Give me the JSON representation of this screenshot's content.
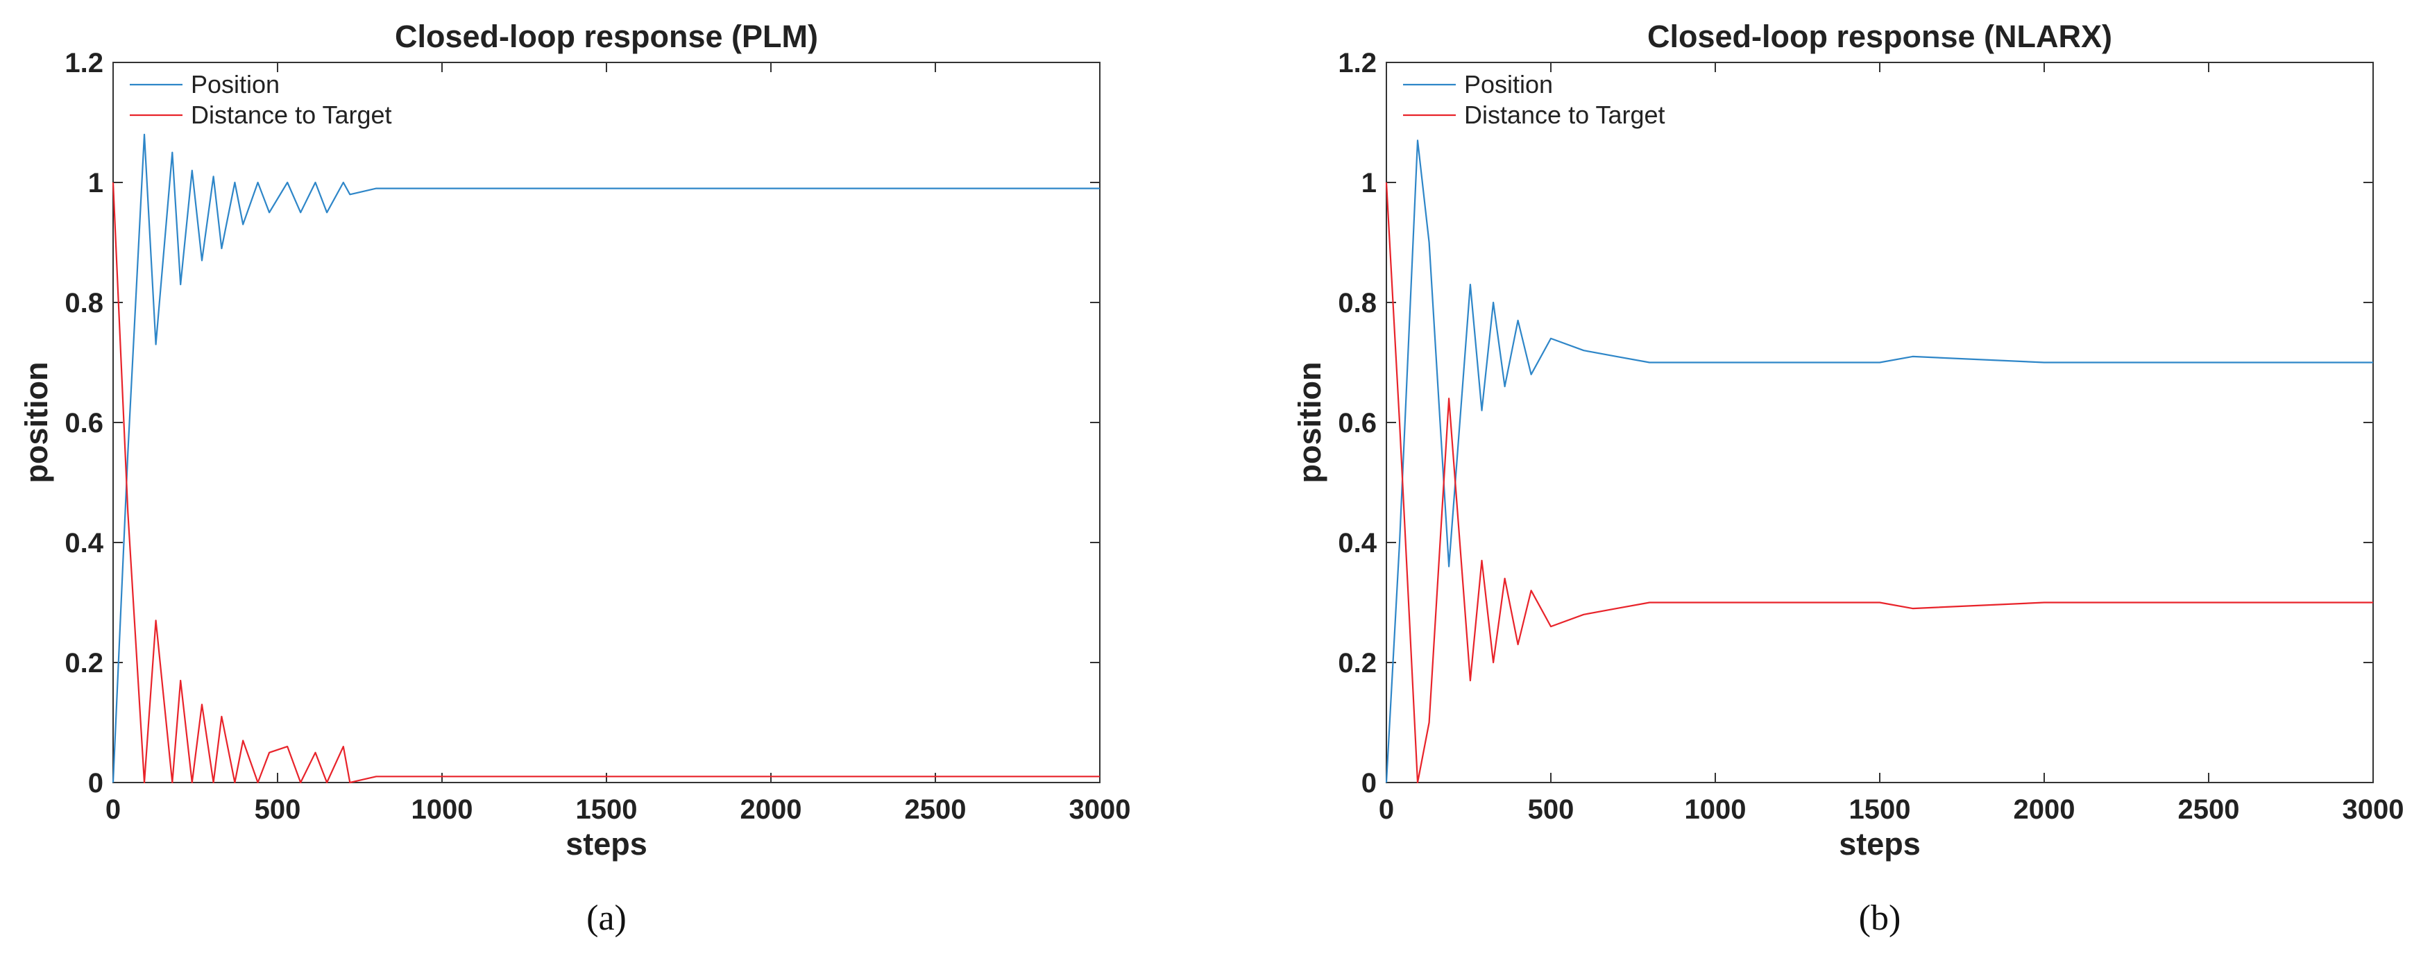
{
  "chart_data": [
    {
      "type": "line",
      "title": "Closed-loop response (PLM)",
      "xlabel": "steps",
      "ylabel": "position",
      "xlim": [
        0,
        3000
      ],
      "ylim": [
        0,
        1.2
      ],
      "xticks": [
        "0",
        "500",
        "1000",
        "1500",
        "2000",
        "2500",
        "3000"
      ],
      "yticks": [
        "0",
        "0.2",
        "0.4",
        "0.6",
        "0.8",
        "1",
        "1.2"
      ],
      "grid": false,
      "legend_position": "top-left",
      "caption": "(a)",
      "series": [
        {
          "name": "Position",
          "color": "#2e86c8",
          "x": [
            0,
            45,
            95,
            130,
            180,
            205,
            240,
            270,
            305,
            330,
            370,
            395,
            440,
            475,
            530,
            570,
            615,
            650,
            700,
            720,
            800,
            1000,
            1500,
            2000,
            2500,
            3000
          ],
          "y": [
            0,
            0.55,
            1.08,
            0.73,
            1.05,
            0.83,
            1.02,
            0.87,
            1.01,
            0.89,
            1.0,
            0.93,
            1.0,
            0.95,
            1.0,
            0.95,
            1.0,
            0.95,
            1.0,
            0.98,
            0.99,
            0.99,
            0.99,
            0.99,
            0.99,
            0.99
          ]
        },
        {
          "name": "Distance to Target",
          "color": "#e8232a",
          "x": [
            0,
            45,
            95,
            130,
            180,
            205,
            240,
            270,
            305,
            330,
            370,
            395,
            440,
            475,
            530,
            570,
            615,
            650,
            700,
            720,
            800,
            1000,
            1500,
            2000,
            2500,
            3000
          ],
          "y": [
            1.0,
            0.45,
            0.0,
            0.27,
            0.0,
            0.17,
            0.0,
            0.13,
            0.0,
            0.11,
            0.0,
            0.07,
            0.0,
            0.05,
            0.06,
            0.0,
            0.05,
            0.0,
            0.06,
            0.0,
            0.01,
            0.01,
            0.01,
            0.01,
            0.01,
            0.01
          ]
        }
      ]
    },
    {
      "type": "line",
      "title": "Closed-loop response (NLARX)",
      "xlabel": "steps",
      "ylabel": "position",
      "xlim": [
        0,
        3000
      ],
      "ylim": [
        0,
        1.2
      ],
      "xticks": [
        "0",
        "500",
        "1000",
        "1500",
        "2000",
        "2500",
        "3000"
      ],
      "yticks": [
        "0",
        "0.2",
        "0.4",
        "0.6",
        "0.8",
        "1",
        "1.2"
      ],
      "grid": false,
      "legend_position": "top-left",
      "caption": "(b)",
      "series": [
        {
          "name": "Position",
          "color": "#2e86c8",
          "x": [
            0,
            40,
            95,
            130,
            190,
            255,
            290,
            325,
            360,
            400,
            440,
            500,
            600,
            700,
            800,
            1000,
            1500,
            1600,
            2000,
            2500,
            3000
          ],
          "y": [
            0,
            0.4,
            1.07,
            0.9,
            0.36,
            0.83,
            0.62,
            0.8,
            0.66,
            0.77,
            0.68,
            0.74,
            0.72,
            0.71,
            0.7,
            0.7,
            0.7,
            0.71,
            0.7,
            0.7,
            0.7
          ]
        },
        {
          "name": "Distance to Target",
          "color": "#e8232a",
          "x": [
            0,
            40,
            95,
            130,
            190,
            255,
            290,
            325,
            360,
            400,
            440,
            500,
            600,
            700,
            800,
            1000,
            1500,
            1600,
            2000,
            2500,
            3000
          ],
          "y": [
            1.0,
            0.6,
            0.0,
            0.1,
            0.64,
            0.17,
            0.37,
            0.2,
            0.34,
            0.23,
            0.32,
            0.26,
            0.28,
            0.29,
            0.3,
            0.3,
            0.3,
            0.29,
            0.3,
            0.3,
            0.3
          ]
        }
      ]
    }
  ]
}
